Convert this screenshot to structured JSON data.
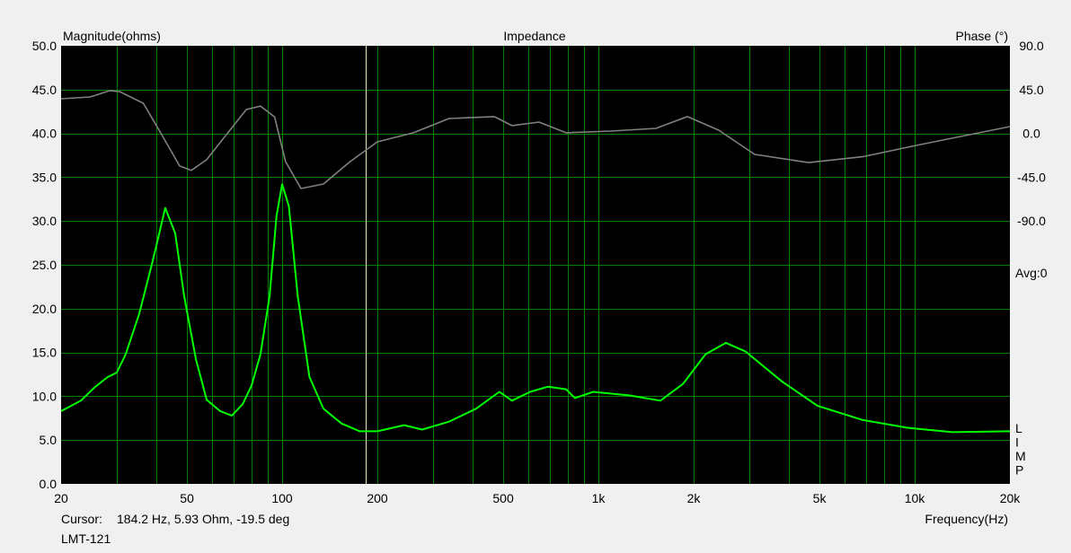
{
  "chart_data": {
    "type": "line",
    "title": "Impedance",
    "ylabel": "Magnitude(ohms)",
    "y2label": "Phase (°)",
    "xlabel": "Frequency(Hz)",
    "xscale": "log",
    "xlim": [
      20,
      20000
    ],
    "ylim": [
      0,
      50
    ],
    "y2lim": [
      -360,
      90
    ],
    "grid": true,
    "x_ticks": [
      "20",
      "50",
      "100",
      "200",
      "500",
      "1k",
      "2k",
      "5k",
      "10k",
      "20k"
    ],
    "x_tick_values": [
      20,
      50,
      100,
      200,
      500,
      1000,
      2000,
      5000,
      10000,
      20000
    ],
    "y_ticks": [
      "0.0",
      "5.0",
      "10.0",
      "15.0",
      "20.0",
      "25.0",
      "30.0",
      "35.0",
      "40.0",
      "45.0",
      "50.0"
    ],
    "y2_ticks": [
      "90.0",
      "45.0",
      "0.0",
      "-45.0",
      "-90.0"
    ],
    "y2_tick_values": [
      90,
      45,
      0,
      -45,
      -90
    ],
    "avg_label": "Avg:0",
    "side_label": [
      "L",
      "I",
      "M",
      "P"
    ],
    "cursor_freq": 184.2,
    "colors": {
      "magnitude": "#00ff00",
      "phase": "#808080",
      "grid": "#008000",
      "cursor": "#e8e8c0",
      "background": "#000000"
    },
    "series": [
      {
        "axis": "magnitude",
        "x": [
          20,
          23.1,
          25.5,
          28.1,
          30,
          32,
          35.3,
          39,
          42.7,
          45.9,
          49,
          53.4,
          57.7,
          63.7,
          69.3,
          75,
          80,
          85.4,
          91.2,
          96,
          100,
          105,
          112,
          122,
          135,
          154,
          176,
          200,
          243,
          277,
          337,
          411,
          486,
          533,
          608,
          693,
          790,
          843,
          962,
          1248,
          1570,
          1850,
          2180,
          2530,
          2920,
          3800,
          4930,
          6840,
          9490,
          13160,
          20000
        ],
        "y": [
          8.3,
          9.5,
          11.0,
          12.2,
          12.7,
          14.8,
          19.4,
          25.5,
          31.5,
          28.6,
          21.4,
          14.2,
          9.6,
          8.3,
          7.8,
          9.1,
          11.2,
          14.8,
          21.4,
          30.6,
          34.2,
          31.7,
          21.4,
          12.2,
          8.6,
          6.9,
          6.0,
          6.0,
          6.7,
          6.2,
          7.1,
          8.6,
          10.5,
          9.5,
          10.5,
          11.1,
          10.8,
          9.8,
          10.5,
          10.1,
          9.5,
          11.4,
          14.8,
          16.1,
          15.1,
          11.7,
          8.9,
          7.3,
          6.4,
          5.9,
          6.0
        ]
      },
      {
        "axis": "phase",
        "x": [
          20,
          24.7,
          28.5,
          30.6,
          36.4,
          41.6,
          47.4,
          51.6,
          57.7,
          70.2,
          77,
          85.4,
          94.6,
          102.5,
          114.7,
          135,
          164,
          200,
          260,
          337,
          468,
          533,
          649,
          790,
          1096,
          1520,
          1910,
          2400,
          3120,
          4620,
          6840,
          10140,
          20000
        ],
        "y": [
          35.6,
          37.4,
          43.9,
          43,
          31,
          -1.3,
          -33.5,
          -38,
          -27,
          8,
          24.5,
          28,
          17,
          -29,
          -56.6,
          -52,
          -29,
          -8.7,
          0.6,
          15.3,
          17.2,
          8,
          11.6,
          0.6,
          2.4,
          5.2,
          17.2,
          3.3,
          -21.6,
          -30,
          -24,
          -12.3,
          7
        ]
      }
    ]
  },
  "footer": {
    "cursor_label": "Cursor:",
    "cursor_value": "184.2 Hz, 5.93 Ohm, -19.5 deg",
    "device_name": "LMT-121"
  }
}
